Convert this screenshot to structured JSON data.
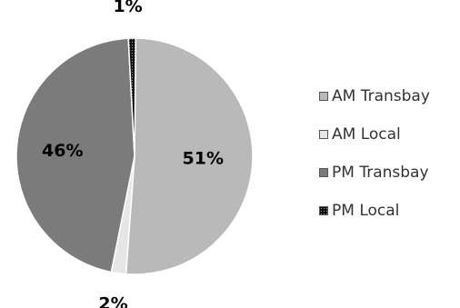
{
  "chart_data": {
    "type": "pie",
    "title": "",
    "slices": [
      {
        "label": "AM Transbay",
        "value": 51,
        "display": "51%",
        "color": "#b9b9b9",
        "pattern": "solid"
      },
      {
        "label": "AM Local",
        "value": 2,
        "display": "2%",
        "color": "#e6e6e6",
        "pattern": "solid"
      },
      {
        "label": "PM Transbay",
        "value": 46,
        "display": "46%",
        "color": "#7b7b7b",
        "pattern": "solid"
      },
      {
        "label": "PM Local",
        "value": 1,
        "display": "1%",
        "color": "#111111",
        "pattern": "dotted"
      }
    ],
    "legend": {
      "position": "right",
      "entries": [
        "AM Transbay",
        "AM Local",
        "PM Transbay",
        "PM Local"
      ]
    }
  }
}
